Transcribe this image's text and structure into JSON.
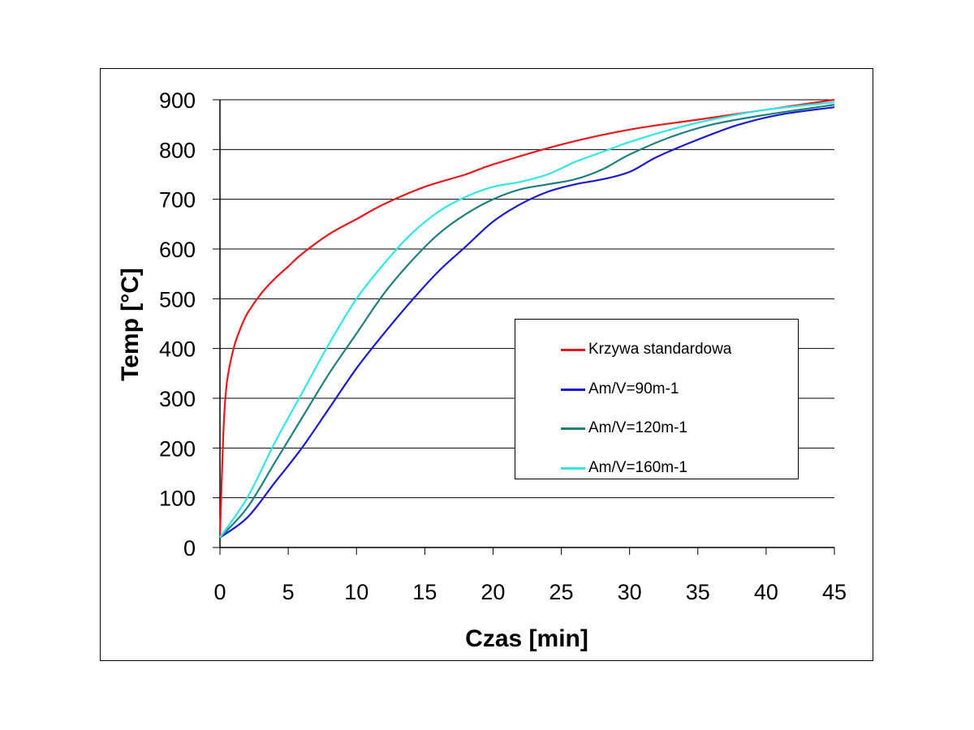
{
  "chart_data": {
    "type": "line",
    "xlabel": "Czas [min]",
    "ylabel": "Temp [°C]",
    "xlim": [
      0,
      45
    ],
    "ylim": [
      0,
      900
    ],
    "xticks": [
      "0",
      "5",
      "10",
      "15",
      "20",
      "25",
      "30",
      "35",
      "40",
      "45"
    ],
    "yticks": [
      "0",
      "100",
      "200",
      "300",
      "400",
      "500",
      "600",
      "700",
      "800",
      "900"
    ],
    "grid": "horizontal",
    "legend_position": "center-right",
    "series": [
      {
        "name": "Krzywa standardowa",
        "color": "#e41a1c",
        "x": [
          0,
          0.25,
          0.5,
          1,
          1.5,
          2,
          3,
          4,
          5,
          6,
          8,
          10,
          12,
          15,
          18,
          20,
          25,
          30,
          35,
          40,
          45
        ],
        "y": [
          20,
          230,
          330,
          400,
          440,
          470,
          510,
          540,
          565,
          590,
          630,
          660,
          690,
          725,
          750,
          770,
          810,
          840,
          860,
          880,
          900
        ]
      },
      {
        "name": "Am/V=90m-1",
        "color": "#1a1acc",
        "x": [
          0,
          2,
          4,
          6,
          8,
          10,
          12,
          14,
          16,
          18,
          20,
          22,
          24,
          26,
          28,
          30,
          32,
          35,
          38,
          41,
          45
        ],
        "y": [
          20,
          60,
          130,
          200,
          280,
          360,
          430,
          495,
          555,
          605,
          655,
          690,
          715,
          730,
          740,
          755,
          785,
          820,
          850,
          870,
          885
        ]
      },
      {
        "name": "Am/V=120m-1",
        "color": "#1f7f7f",
        "x": [
          0,
          2,
          4,
          6,
          8,
          10,
          12,
          14,
          16,
          18,
          20,
          22,
          24,
          26,
          28,
          30,
          33,
          36,
          40,
          45
        ],
        "y": [
          20,
          80,
          170,
          260,
          350,
          430,
          510,
          575,
          630,
          670,
          700,
          720,
          730,
          740,
          760,
          790,
          825,
          850,
          870,
          890
        ]
      },
      {
        "name": "Am/V=160m-1",
        "color": "#33e6e6",
        "x": [
          0,
          2,
          4,
          6,
          8,
          10,
          12,
          14,
          16,
          18,
          20,
          22,
          24,
          26,
          28,
          30,
          33,
          36,
          40,
          45
        ],
        "y": [
          20,
          100,
          210,
          310,
          410,
          500,
          570,
          630,
          675,
          705,
          725,
          735,
          750,
          775,
          795,
          815,
          840,
          860,
          880,
          895
        ]
      }
    ]
  }
}
